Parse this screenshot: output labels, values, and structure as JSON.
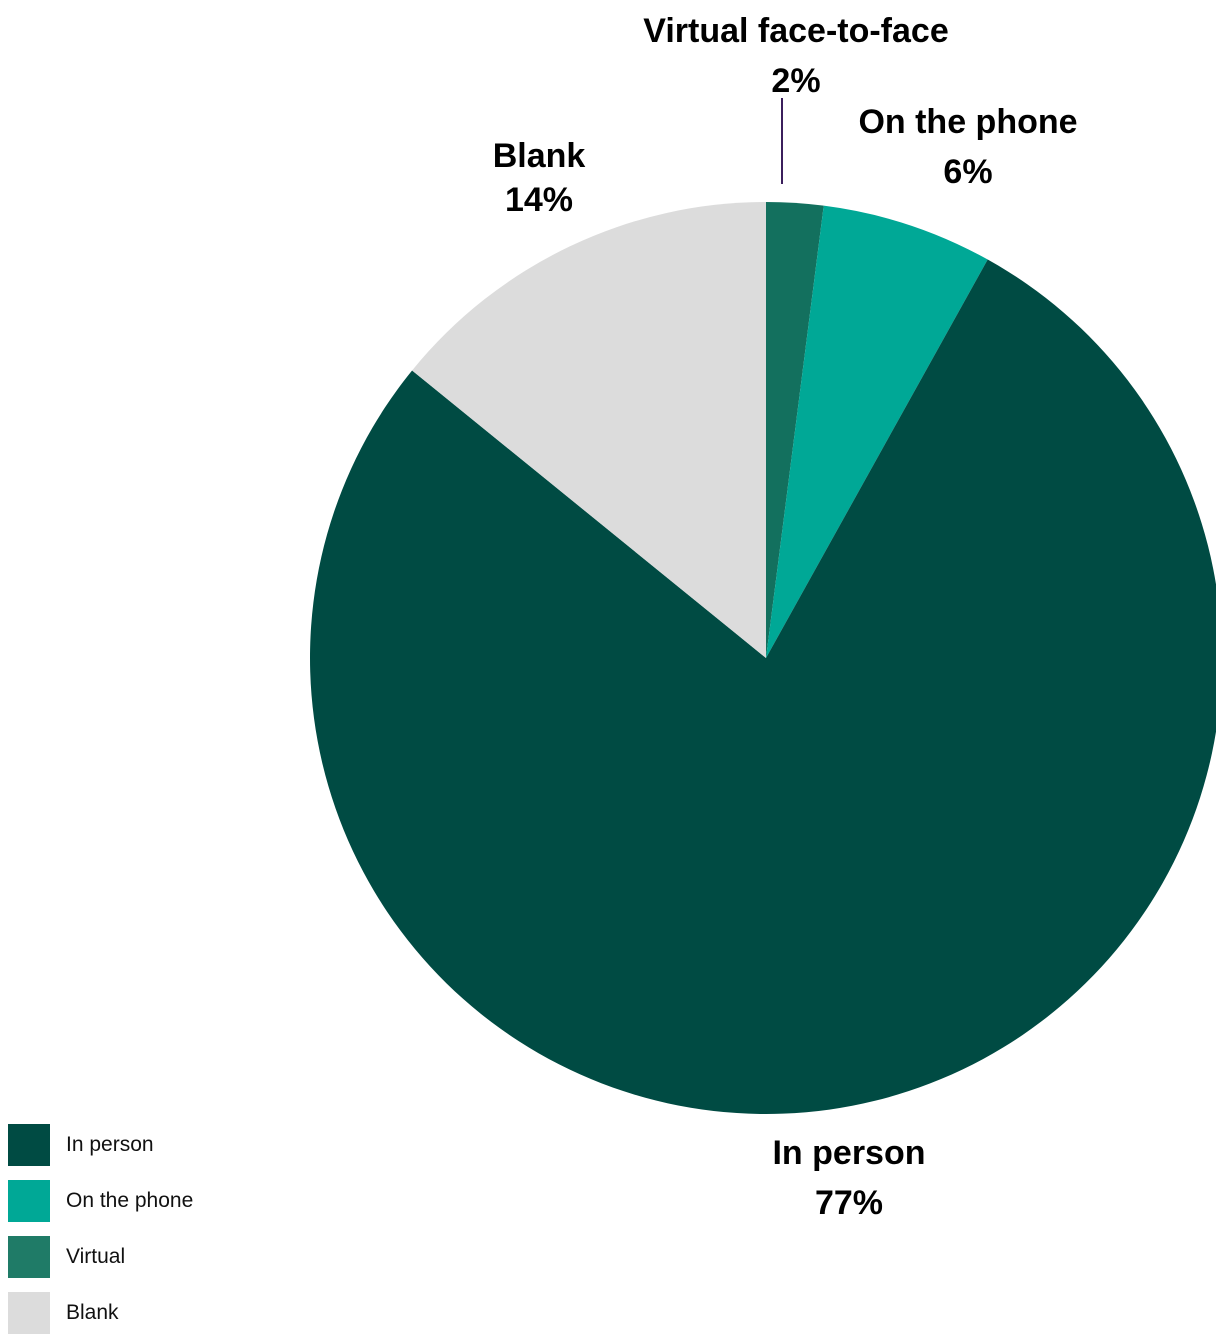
{
  "chart_data": {
    "type": "pie",
    "title": "",
    "start_angle_deg": 0,
    "direction": "clockwise",
    "slices": [
      {
        "key": "virtual",
        "label": "Virtual face-to-face",
        "value": 2,
        "value_label": "2%",
        "color": "#13705e"
      },
      {
        "key": "phone",
        "label": "On the phone",
        "value": 6,
        "value_label": "6%",
        "color": "#00a896"
      },
      {
        "key": "in_person",
        "label": "In person",
        "value": 77,
        "value_label": "77%",
        "color": "#004b43"
      },
      {
        "key": "blank",
        "label": "Blank",
        "value": 14,
        "value_label": "14%",
        "color": "#dcdcdc"
      }
    ],
    "legend": {
      "placement": "bottom-left",
      "items": [
        {
          "label": "In person",
          "color": "#004b43"
        },
        {
          "label": "On the phone",
          "color": "#00a896"
        },
        {
          "label": "Virtual",
          "color": "#1f7b67"
        },
        {
          "label": "Blank",
          "color": "#dcdcdc"
        }
      ]
    },
    "leader_line_color": "#3b1f5c"
  }
}
